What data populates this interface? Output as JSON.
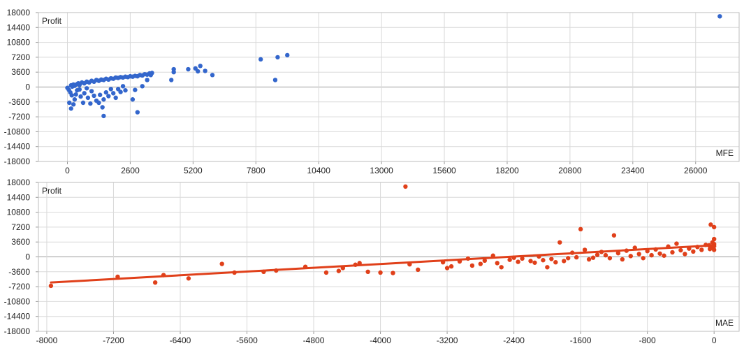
{
  "chart_data": [
    {
      "type": "scatter",
      "title": "",
      "ylabel": "Profit",
      "xlabel": "MFE",
      "xlim": [
        -1200,
        27800
      ],
      "ylim": [
        -18000,
        18000
      ],
      "x_ticks": [
        "0",
        "2600",
        "5200",
        "7800",
        "10400",
        "13000",
        "15600",
        "18200",
        "20800",
        "23400",
        "26000"
      ],
      "x_tick_values": [
        0,
        2600,
        5200,
        7800,
        10400,
        13000,
        15600,
        18200,
        20800,
        23400,
        26000
      ],
      "y_ticks": [
        "18000",
        "14400",
        "10800",
        "7200",
        "3600",
        "0",
        "-3600",
        "-7200",
        "-10800",
        "-14400",
        "-18000"
      ],
      "y_tick_values": [
        18000,
        14400,
        10800,
        7200,
        3600,
        0,
        -3600,
        -7200,
        -10800,
        -14400,
        -18000
      ],
      "grid": true,
      "color": "#3366cc",
      "points": [
        [
          0,
          -200
        ],
        [
          60,
          -700
        ],
        [
          120,
          -1300
        ],
        [
          180,
          -2000
        ],
        [
          80,
          -3800
        ],
        [
          150,
          -5200
        ],
        [
          250,
          -4200
        ],
        [
          300,
          -3000
        ],
        [
          350,
          -1800
        ],
        [
          400,
          -800
        ],
        [
          500,
          -600
        ],
        [
          550,
          -2300
        ],
        [
          650,
          -3800
        ],
        [
          700,
          -1500
        ],
        [
          800,
          -300
        ],
        [
          850,
          -2600
        ],
        [
          950,
          -4000
        ],
        [
          1000,
          -1000
        ],
        [
          1100,
          -2100
        ],
        [
          1200,
          -3300
        ],
        [
          1300,
          -3800
        ],
        [
          1350,
          -1900
        ],
        [
          1450,
          -4900
        ],
        [
          1500,
          -3000
        ],
        [
          1600,
          -1300
        ],
        [
          1500,
          -7000
        ],
        [
          1700,
          -2200
        ],
        [
          1800,
          -500
        ],
        [
          1900,
          -1500
        ],
        [
          2000,
          -2600
        ],
        [
          2100,
          -500
        ],
        [
          2200,
          -1200
        ],
        [
          2300,
          200
        ],
        [
          2400,
          -800
        ],
        [
          2700,
          -3000
        ],
        [
          2900,
          -6100
        ],
        [
          2800,
          -700
        ],
        [
          3100,
          200
        ],
        [
          150,
          400
        ],
        [
          200,
          100
        ],
        [
          250,
          600
        ],
        [
          300,
          300
        ],
        [
          400,
          700
        ],
        [
          450,
          900
        ],
        [
          500,
          500
        ],
        [
          600,
          1100
        ],
        [
          700,
          900
        ],
        [
          800,
          1300
        ],
        [
          900,
          1100
        ],
        [
          1000,
          1500
        ],
        [
          1100,
          1300
        ],
        [
          1200,
          1700
        ],
        [
          1300,
          1500
        ],
        [
          1400,
          1800
        ],
        [
          1500,
          1700
        ],
        [
          1600,
          2000
        ],
        [
          1700,
          1800
        ],
        [
          1800,
          2100
        ],
        [
          1900,
          2000
        ],
        [
          2000,
          2300
        ],
        [
          2100,
          2200
        ],
        [
          2200,
          2400
        ],
        [
          2300,
          2300
        ],
        [
          2400,
          2500
        ],
        [
          2500,
          2400
        ],
        [
          2600,
          2600
        ],
        [
          2700,
          2500
        ],
        [
          2800,
          2700
        ],
        [
          2900,
          2600
        ],
        [
          3000,
          2900
        ],
        [
          3100,
          2800
        ],
        [
          3200,
          3100
        ],
        [
          3300,
          3000
        ],
        [
          3400,
          3300
        ],
        [
          3500,
          3400
        ],
        [
          3450,
          2900
        ],
        [
          3300,
          1700
        ],
        [
          4300,
          1700
        ],
        [
          4400,
          3600
        ],
        [
          4400,
          4300
        ],
        [
          5000,
          4300
        ],
        [
          5300,
          4500
        ],
        [
          5400,
          3800
        ],
        [
          5500,
          5100
        ],
        [
          5700,
          3900
        ],
        [
          6000,
          2900
        ],
        [
          8000,
          6700
        ],
        [
          8600,
          1700
        ],
        [
          8700,
          7200
        ],
        [
          9100,
          7700
        ],
        [
          27000,
          17100
        ]
      ]
    },
    {
      "type": "scatter",
      "title": "",
      "ylabel": "Profit",
      "xlabel": "MAE",
      "xlim": [
        -8100,
        300
      ],
      "ylim": [
        -18000,
        18000
      ],
      "x_ticks": [
        "-8000",
        "-7200",
        "-6400",
        "-5600",
        "-4800",
        "-4000",
        "-3200",
        "-2400",
        "-1600",
        "-800",
        "0"
      ],
      "x_tick_values": [
        -8000,
        -7200,
        -6400,
        -5600,
        -4800,
        -4000,
        -3200,
        -2400,
        -1600,
        -800,
        0
      ],
      "y_ticks": [
        "18000",
        "14400",
        "10800",
        "7200",
        "3600",
        "0",
        "-3600",
        "-7200",
        "-10800",
        "-14400",
        "-18000"
      ],
      "y_tick_values": [
        18000,
        14400,
        10800,
        7200,
        3600,
        0,
        -3600,
        -7200,
        -10800,
        -14400,
        -18000
      ],
      "grid": true,
      "color": "#e0401a",
      "trendline": [
        [
          -7950,
          -6200
        ],
        [
          0,
          2800
        ]
      ],
      "points": [
        [
          -7950,
          -7000
        ],
        [
          -7150,
          -4800
        ],
        [
          -6700,
          -6200
        ],
        [
          -6600,
          -4400
        ],
        [
          -6300,
          -5200
        ],
        [
          -5900,
          -1700
        ],
        [
          -5750,
          -3800
        ],
        [
          -5400,
          -3600
        ],
        [
          -5250,
          -3300
        ],
        [
          -4900,
          -2400
        ],
        [
          -4650,
          -3800
        ],
        [
          -4500,
          -3400
        ],
        [
          -4450,
          -2700
        ],
        [
          -4300,
          -1900
        ],
        [
          -4250,
          -1500
        ],
        [
          -4150,
          -3600
        ],
        [
          -4000,
          -3800
        ],
        [
          -3850,
          -3900
        ],
        [
          -3700,
          17000
        ],
        [
          -3650,
          -1800
        ],
        [
          -3550,
          -3100
        ],
        [
          -3250,
          -1300
        ],
        [
          -3200,
          -2700
        ],
        [
          -3150,
          -2300
        ],
        [
          -3050,
          -1100
        ],
        [
          -2950,
          -400
        ],
        [
          -2900,
          -2100
        ],
        [
          -2800,
          -1700
        ],
        [
          -2750,
          -900
        ],
        [
          -2650,
          300
        ],
        [
          -2600,
          -1500
        ],
        [
          -2550,
          -2500
        ],
        [
          -2450,
          -700
        ],
        [
          -2400,
          -200
        ],
        [
          -2350,
          -1200
        ],
        [
          -2300,
          -400
        ],
        [
          -2200,
          -1000
        ],
        [
          -2150,
          -1400
        ],
        [
          -2100,
          100
        ],
        [
          -2050,
          -800
        ],
        [
          -2000,
          -2500
        ],
        [
          -1950,
          -500
        ],
        [
          -1900,
          -1300
        ],
        [
          -1850,
          3500
        ],
        [
          -1800,
          -1000
        ],
        [
          -1750,
          -300
        ],
        [
          -1700,
          1000
        ],
        [
          -1650,
          -100
        ],
        [
          -1600,
          6700
        ],
        [
          -1550,
          1700
        ],
        [
          -1500,
          -600
        ],
        [
          -1450,
          -200
        ],
        [
          -1400,
          500
        ],
        [
          -1350,
          1200
        ],
        [
          -1300,
          400
        ],
        [
          -1250,
          -300
        ],
        [
          -1200,
          5200
        ],
        [
          -1150,
          900
        ],
        [
          -1100,
          -600
        ],
        [
          -1050,
          1500
        ],
        [
          -1000,
          200
        ],
        [
          -950,
          2200
        ],
        [
          -900,
          700
        ],
        [
          -850,
          -300
        ],
        [
          -800,
          1400
        ],
        [
          -750,
          400
        ],
        [
          -700,
          1800
        ],
        [
          -650,
          800
        ],
        [
          -600,
          300
        ],
        [
          -550,
          2500
        ],
        [
          -500,
          1100
        ],
        [
          -450,
          3200
        ],
        [
          -400,
          1600
        ],
        [
          -350,
          700
        ],
        [
          -300,
          2000
        ],
        [
          -250,
          1300
        ],
        [
          -200,
          2400
        ],
        [
          -150,
          1700
        ],
        [
          -100,
          2900
        ],
        [
          -50,
          1900
        ],
        [
          -20,
          3500
        ],
        [
          -10,
          2200
        ],
        [
          0,
          2600
        ],
        [
          0,
          1700
        ],
        [
          0,
          4300
        ],
        [
          -40,
          7800
        ],
        [
          0,
          7200
        ],
        [
          0,
          3100
        ],
        [
          -60,
          2800
        ],
        [
          -30,
          2300
        ]
      ]
    }
  ]
}
